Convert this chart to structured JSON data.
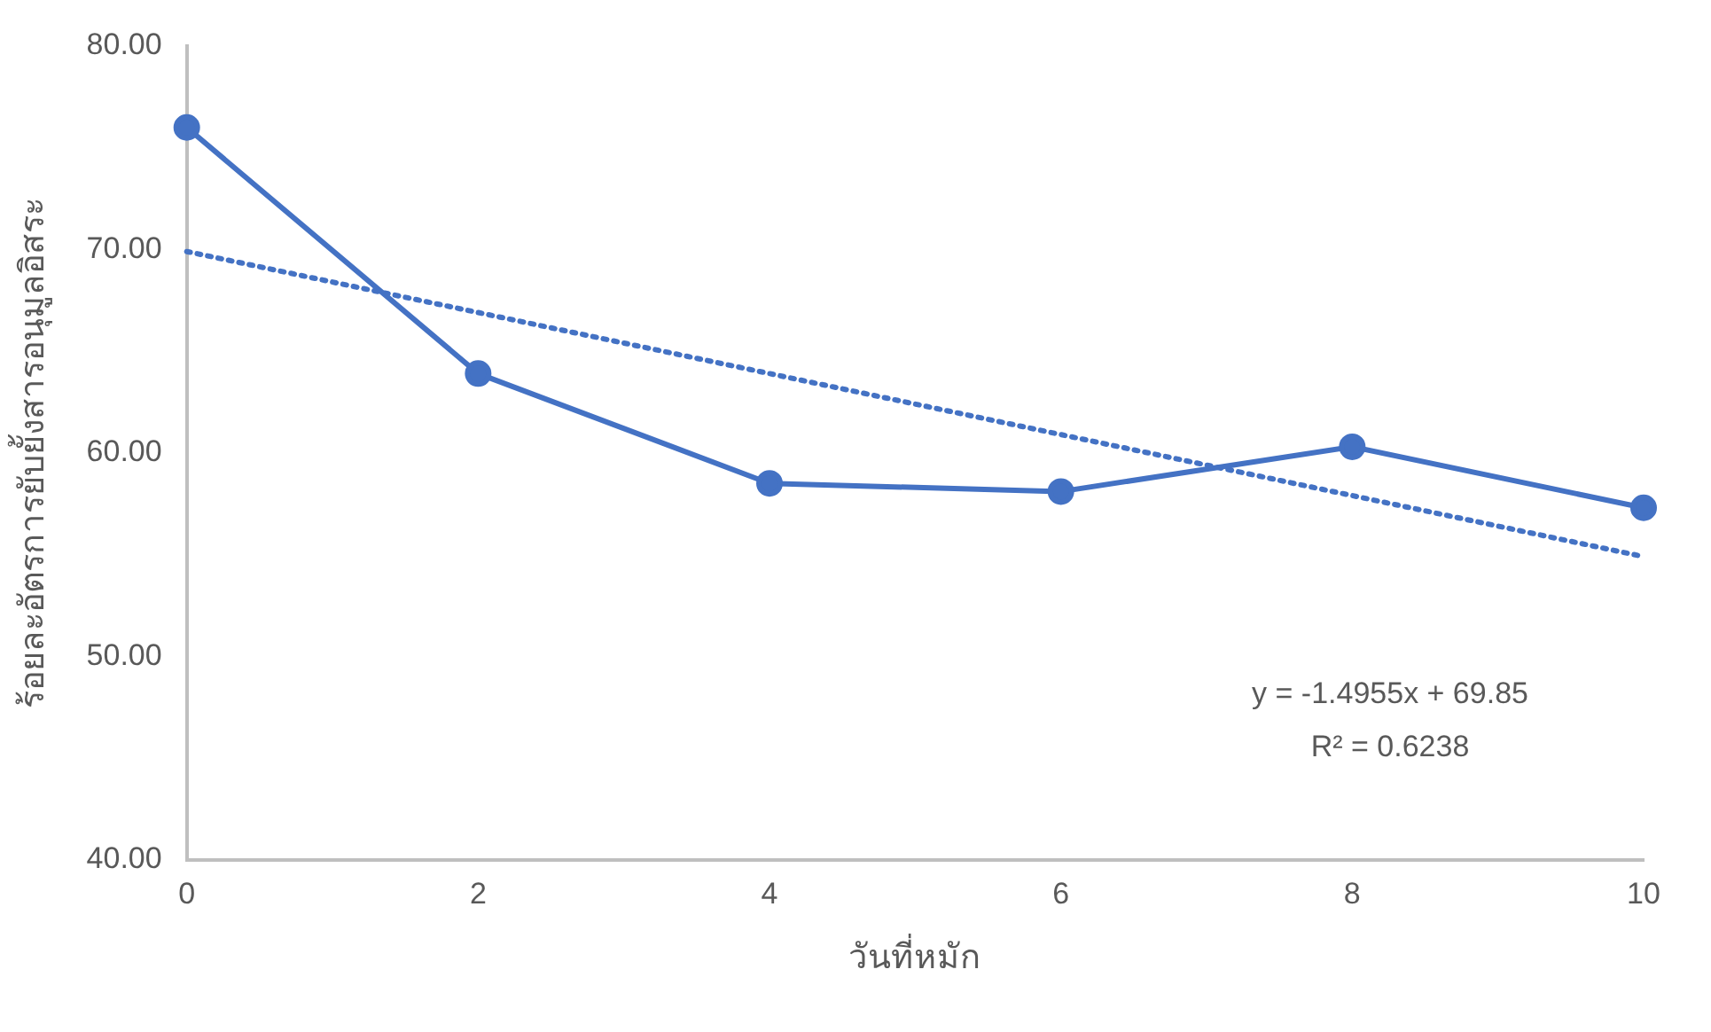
{
  "chart_data": {
    "type": "line",
    "xlabel": "วันที่หมัก",
    "ylabel": "ร้อยละอัตรการยับยั้งสารอนุมูลอิสระ",
    "x": [
      0,
      2,
      4,
      6,
      8,
      10
    ],
    "series": [
      {
        "color": "#4472c4",
        "values": [
          76.0,
          63.9,
          58.5,
          58.1,
          60.3,
          57.3
        ],
        "marker": "circle",
        "line_style": "solid"
      },
      {
        "color": "#4472c4",
        "x": [
          0,
          10
        ],
        "values": [
          69.9,
          54.9
        ],
        "marker": "none",
        "line_style": "dotted"
      }
    ],
    "xlim": [
      0,
      10
    ],
    "xticks": [
      0,
      2,
      4,
      6,
      8,
      10
    ],
    "ylim": [
      40,
      80
    ],
    "yticks": [
      {
        "value": 40,
        "label": "40.00"
      },
      {
        "value": 50,
        "label": "50.00"
      },
      {
        "value": 60,
        "label": "60.00"
      },
      {
        "value": 70,
        "label": "70.00"
      },
      {
        "value": 80,
        "label": "80.00"
      }
    ],
    "grid": false,
    "legend": false,
    "annotations": [
      "y = -1.4955x + 69.85",
      "R² = 0.6238"
    ]
  }
}
